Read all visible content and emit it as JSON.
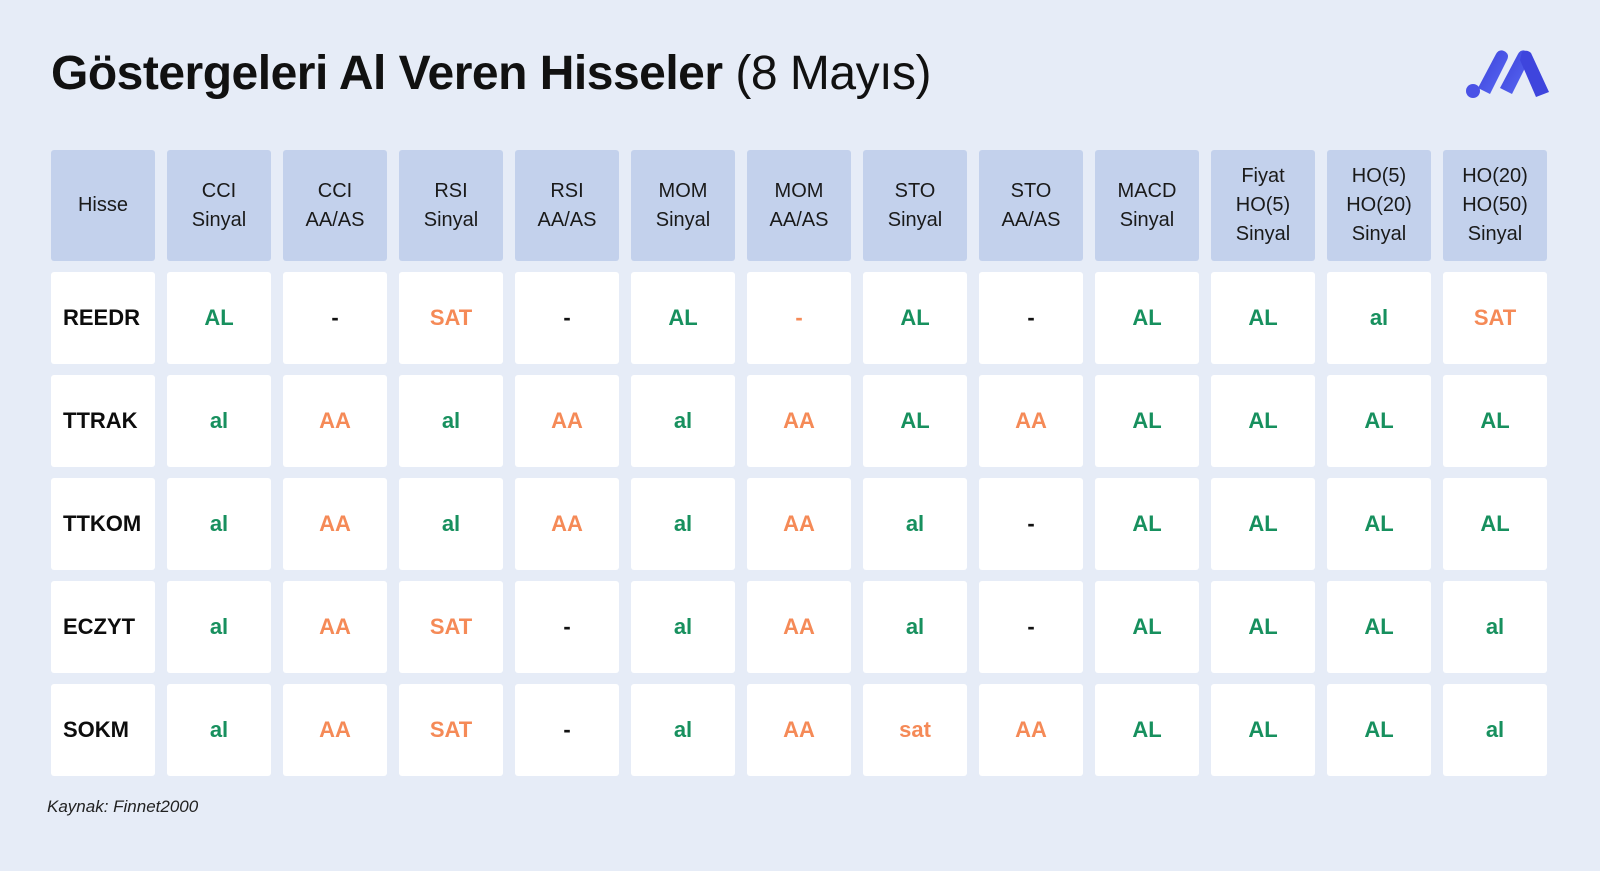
{
  "title": {
    "bold": "Göstergeleri Al Veren Hisseler",
    "light": "(8 Mayıs)"
  },
  "logo_name": "brand-logo",
  "colors": {
    "buy": "#17905e",
    "sell_or_neutral": "#f58a57",
    "header_bg": "#c3d1ec",
    "page_bg": "#e6ecf7"
  },
  "headers": [
    "Hisse",
    "CCI\nSinyal",
    "CCI\nAA/AS",
    "RSI\nSinyal",
    "RSI\nAA/AS",
    "MOM\nSinyal",
    "MOM\nAA/AS",
    "STO\nSinyal",
    "STO\nAA/AS",
    "MACD\nSinyal",
    "Fiyat\nHO(5)\nSinyal",
    "HO(5)\nHO(20)\nSinyal",
    "HO(20)\nHO(50)\nSinyal"
  ],
  "rows": [
    {
      "ticker": "REEDR",
      "cells": [
        {
          "v": "AL",
          "c": "green"
        },
        {
          "v": "-",
          "c": "dash"
        },
        {
          "v": "SAT",
          "c": "orange"
        },
        {
          "v": "-",
          "c": "dash"
        },
        {
          "v": "AL",
          "c": "green"
        },
        {
          "v": "-",
          "c": "orange"
        },
        {
          "v": "AL",
          "c": "green"
        },
        {
          "v": "-",
          "c": "dash"
        },
        {
          "v": "AL",
          "c": "green"
        },
        {
          "v": "AL",
          "c": "green"
        },
        {
          "v": "al",
          "c": "green"
        },
        {
          "v": "SAT",
          "c": "orange"
        }
      ]
    },
    {
      "ticker": "TTRAK",
      "cells": [
        {
          "v": "al",
          "c": "green"
        },
        {
          "v": "AA",
          "c": "orange"
        },
        {
          "v": "al",
          "c": "green"
        },
        {
          "v": "AA",
          "c": "orange"
        },
        {
          "v": "al",
          "c": "green"
        },
        {
          "v": "AA",
          "c": "orange"
        },
        {
          "v": "AL",
          "c": "green"
        },
        {
          "v": "AA",
          "c": "orange"
        },
        {
          "v": "AL",
          "c": "green"
        },
        {
          "v": "AL",
          "c": "green"
        },
        {
          "v": "AL",
          "c": "green"
        },
        {
          "v": "AL",
          "c": "green"
        }
      ]
    },
    {
      "ticker": "TTKOM",
      "cells": [
        {
          "v": "al",
          "c": "green"
        },
        {
          "v": "AA",
          "c": "orange"
        },
        {
          "v": "al",
          "c": "green"
        },
        {
          "v": "AA",
          "c": "orange"
        },
        {
          "v": "al",
          "c": "green"
        },
        {
          "v": "AA",
          "c": "orange"
        },
        {
          "v": "al",
          "c": "green"
        },
        {
          "v": "-",
          "c": "dash"
        },
        {
          "v": "AL",
          "c": "green"
        },
        {
          "v": "AL",
          "c": "green"
        },
        {
          "v": "AL",
          "c": "green"
        },
        {
          "v": "AL",
          "c": "green"
        }
      ]
    },
    {
      "ticker": "ECZYT",
      "cells": [
        {
          "v": "al",
          "c": "green"
        },
        {
          "v": "AA",
          "c": "orange"
        },
        {
          "v": "SAT",
          "c": "orange"
        },
        {
          "v": "-",
          "c": "dash"
        },
        {
          "v": "al",
          "c": "green"
        },
        {
          "v": "AA",
          "c": "orange"
        },
        {
          "v": "al",
          "c": "green"
        },
        {
          "v": "-",
          "c": "dash"
        },
        {
          "v": "AL",
          "c": "green"
        },
        {
          "v": "AL",
          "c": "green"
        },
        {
          "v": "AL",
          "c": "green"
        },
        {
          "v": "al",
          "c": "green"
        }
      ]
    },
    {
      "ticker": "SOKM",
      "cells": [
        {
          "v": "al",
          "c": "green"
        },
        {
          "v": "AA",
          "c": "orange"
        },
        {
          "v": "SAT",
          "c": "orange"
        },
        {
          "v": "-",
          "c": "dash"
        },
        {
          "v": "al",
          "c": "green"
        },
        {
          "v": "AA",
          "c": "orange"
        },
        {
          "v": "sat",
          "c": "orange"
        },
        {
          "v": "AA",
          "c": "orange"
        },
        {
          "v": "AL",
          "c": "green"
        },
        {
          "v": "AL",
          "c": "green"
        },
        {
          "v": "AL",
          "c": "green"
        },
        {
          "v": "al",
          "c": "green"
        }
      ]
    }
  ],
  "source": "Kaynak: Finnet2000"
}
